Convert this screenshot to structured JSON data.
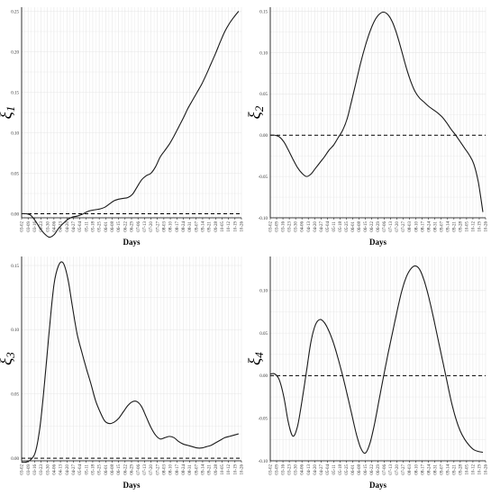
{
  "chart_data": [
    {
      "type": "line",
      "ylabel_symbol": "ξ",
      "ylabel_sub": "1",
      "xlabel": "Days",
      "ylim": [
        -0.005,
        0.255
      ],
      "yticks": [
        0.0,
        0.05,
        0.1,
        0.15,
        0.2,
        0.25
      ],
      "ytick_labels": [
        "0.00",
        "0.05",
        "0.10",
        "0.15",
        "0.20",
        "0.25"
      ],
      "x": [
        0,
        5,
        10,
        15,
        20,
        25,
        30,
        35,
        40,
        45,
        50,
        55,
        60,
        65,
        70,
        75,
        80,
        85,
        90,
        95,
        100,
        105,
        110,
        115,
        120,
        125,
        130,
        135,
        140,
        145,
        150,
        155,
        160,
        165,
        170,
        175,
        180,
        185,
        190,
        195,
        200,
        205,
        210,
        215,
        220,
        225,
        230,
        235
      ],
      "values": [
        0.0,
        0.0,
        -0.002,
        -0.009,
        -0.018,
        -0.025,
        -0.029,
        -0.026,
        -0.018,
        -0.012,
        -0.007,
        -0.004,
        -0.003,
        -0.001,
        0.002,
        0.004,
        0.005,
        0.006,
        0.008,
        0.012,
        0.016,
        0.018,
        0.019,
        0.02,
        0.024,
        0.033,
        0.042,
        0.047,
        0.05,
        0.058,
        0.07,
        0.078,
        0.086,
        0.096,
        0.107,
        0.118,
        0.13,
        0.14,
        0.15,
        0.16,
        0.172,
        0.185,
        0.198,
        0.212,
        0.225,
        0.235,
        0.243,
        0.25
      ],
      "reference_line": 0
    },
    {
      "type": "line",
      "ylabel_symbol": "ξ",
      "ylabel_sub": "2",
      "xlabel": "Days",
      "ylim": [
        -0.1,
        0.155
      ],
      "yticks": [
        -0.1,
        -0.05,
        0.0,
        0.05,
        0.1,
        0.15
      ],
      "ytick_labels": [
        "-0.10",
        "-0.05",
        "0.00",
        "0.05",
        "0.10",
        "0.15"
      ],
      "x": [
        0,
        5,
        10,
        15,
        20,
        25,
        30,
        35,
        40,
        45,
        50,
        55,
        60,
        65,
        70,
        75,
        80,
        85,
        90,
        95,
        100,
        105,
        110,
        115,
        120,
        125,
        130,
        135,
        140,
        145,
        150,
        155,
        160,
        165,
        170,
        175,
        180,
        185,
        190,
        195,
        200,
        205,
        210,
        215,
        220,
        225,
        230,
        235
      ],
      "values": [
        0.0,
        0.0,
        -0.002,
        -0.008,
        -0.018,
        -0.029,
        -0.039,
        -0.046,
        -0.05,
        -0.047,
        -0.04,
        -0.033,
        -0.026,
        -0.018,
        -0.012,
        -0.003,
        0.006,
        0.02,
        0.042,
        0.065,
        0.088,
        0.108,
        0.125,
        0.138,
        0.146,
        0.149,
        0.146,
        0.137,
        0.122,
        0.103,
        0.083,
        0.066,
        0.053,
        0.045,
        0.04,
        0.035,
        0.031,
        0.027,
        0.022,
        0.015,
        0.007,
        0.0,
        -0.008,
        -0.016,
        -0.024,
        -0.035,
        -0.057,
        -0.093
      ]
    },
    {
      "type": "line",
      "ylabel_symbol": "ξ",
      "ylabel_sub": "3",
      "xlabel": "Days",
      "ylim": [
        -0.002,
        0.157
      ],
      "yticks": [
        0.0,
        0.05,
        0.1,
        0.15
      ],
      "ytick_labels": [
        "0.00",
        "0.05",
        "0.10",
        "0.15"
      ],
      "x": [
        0,
        5,
        10,
        15,
        20,
        25,
        30,
        35,
        40,
        45,
        50,
        55,
        60,
        65,
        70,
        75,
        80,
        85,
        90,
        95,
        100,
        105,
        110,
        115,
        120,
        125,
        130,
        135,
        140,
        145,
        150,
        155,
        160,
        165,
        170,
        175,
        180,
        185,
        190,
        195,
        200,
        205,
        210,
        215,
        220,
        225,
        230,
        235
      ],
      "values": [
        -0.003,
        -0.003,
        -0.001,
        0.005,
        0.025,
        0.06,
        0.1,
        0.135,
        0.15,
        0.152,
        0.14,
        0.118,
        0.097,
        0.083,
        0.07,
        0.058,
        0.045,
        0.036,
        0.029,
        0.027,
        0.028,
        0.031,
        0.036,
        0.041,
        0.044,
        0.044,
        0.04,
        0.032,
        0.024,
        0.018,
        0.015,
        0.016,
        0.017,
        0.016,
        0.013,
        0.011,
        0.01,
        0.009,
        0.008,
        0.008,
        0.009,
        0.01,
        0.012,
        0.014,
        0.016,
        0.017,
        0.018,
        0.019
      ],
      "reference_line": 0
    },
    {
      "type": "line",
      "ylabel_symbol": "ξ",
      "ylabel_sub": "4",
      "xlabel": "Days",
      "ylim": [
        -0.1,
        0.14
      ],
      "yticks": [
        -0.1,
        -0.05,
        0.0,
        0.05,
        0.1
      ],
      "ytick_labels": [
        "-0.10",
        "-0.05",
        "0.00",
        "0.05",
        "0.10"
      ],
      "x": [
        0,
        5,
        10,
        15,
        20,
        25,
        30,
        35,
        40,
        45,
        50,
        55,
        60,
        65,
        70,
        75,
        80,
        85,
        90,
        95,
        100,
        105,
        110,
        115,
        120,
        125,
        130,
        135,
        140,
        145,
        150,
        155,
        160,
        165,
        170,
        175,
        180,
        185,
        190,
        195,
        200,
        205,
        210,
        215,
        220,
        225,
        230,
        235
      ],
      "values": [
        0.002,
        0.002,
        -0.005,
        -0.025,
        -0.055,
        -0.071,
        -0.06,
        -0.03,
        0.005,
        0.04,
        0.06,
        0.066,
        0.062,
        0.052,
        0.038,
        0.02,
        0.0,
        -0.022,
        -0.045,
        -0.068,
        -0.085,
        -0.091,
        -0.08,
        -0.058,
        -0.03,
        -0.002,
        0.025,
        0.05,
        0.075,
        0.098,
        0.115,
        0.125,
        0.129,
        0.125,
        0.112,
        0.093,
        0.07,
        0.045,
        0.02,
        -0.005,
        -0.03,
        -0.05,
        -0.065,
        -0.075,
        -0.082,
        -0.087,
        -0.089,
        -0.09
      ],
      "reference_line": 0
    }
  ],
  "x_axis": {
    "tick_labels": [
      "03-02",
      "03-09",
      "03-16",
      "03-23",
      "03-30",
      "04-06",
      "04-13",
      "04-20",
      "04-27",
      "05-04",
      "05-11",
      "05-18",
      "05-25",
      "06-01",
      "06-08",
      "06-15",
      "06-22",
      "06-29",
      "07-06",
      "07-13",
      "07-20",
      "07-27",
      "08-03",
      "08-10",
      "08-17",
      "08-24",
      "08-31",
      "09-07",
      "09-14",
      "09-21",
      "09-28",
      "10-05",
      "10-12",
      "10-19",
      "10-26"
    ],
    "start": 0,
    "step": 7
  },
  "panel_x_ticks": [
    [
      "03-02",
      "03-09",
      "03-16",
      "03-23",
      "03-30",
      "04-06",
      "04-13",
      "04-20",
      "04-27",
      "05-04",
      "05-11",
      "05-18",
      "05-25",
      "06-01",
      "06-08",
      "06-15",
      "06-22",
      "06-29",
      "07-06",
      "07-13",
      "07-20",
      "07-27",
      "08-03",
      "08-10",
      "08-17",
      "08-24",
      "08-31",
      "09-07",
      "09-14",
      "09-21",
      "09-28",
      "10-05",
      "10-12",
      "10-19",
      "10-26"
    ],
    [
      "03-02",
      "03-09",
      "03-16",
      "03-23",
      "03-30",
      "04-06",
      "04-13",
      "04-20",
      "04-27",
      "05-04",
      "05-11",
      "05-18",
      "05-25",
      "06-01",
      "06-08",
      "06-15",
      "06-22",
      "06-29",
      "07-06",
      "07-13",
      "07-20",
      "07-27",
      "08-03",
      "08-10",
      "08-17",
      "08-24",
      "08-31",
      "09-07",
      "09-14",
      "09-21",
      "09-28",
      "10-05",
      "10-12",
      "10-19",
      "10-26"
    ],
    [
      "03-02",
      "03-09",
      "03-16",
      "03-23",
      "03-30",
      "04-06",
      "04-13",
      "04-20",
      "04-27",
      "05-04",
      "05-11",
      "05-18",
      "05-25",
      "06-01",
      "06-08",
      "06-15",
      "06-22",
      "06-29",
      "07-06",
      "07-13",
      "07-20",
      "07-27",
      "08-03",
      "08-10",
      "08-17",
      "08-24",
      "08-31",
      "09-07",
      "09-14",
      "09-21",
      "09-28",
      "10-05",
      "10-12",
      "10-19",
      "10-26"
    ],
    [
      "03-02",
      "03-09",
      "03-16",
      "03-23",
      "03-30",
      "04-06",
      "04-13",
      "04-20",
      "04-27",
      "05-04",
      "05-11",
      "05-18",
      "05-25",
      "06-01",
      "06-08",
      "06-15",
      "06-22",
      "06-29",
      "07-06",
      "07-13",
      "07-20",
      "07-27",
      "08-03",
      "08-10",
      "08-17",
      "08-24",
      "08-31",
      "09-07",
      "09-14",
      "09-21",
      "09-28",
      "10-05",
      "10-12",
      "10-19",
      "10-26"
    ]
  ],
  "style": {
    "line_color": "#1a1a1a",
    "grid_color": "#e6e6e6",
    "axis_color": "#000000",
    "reference_color": "#000000"
  }
}
